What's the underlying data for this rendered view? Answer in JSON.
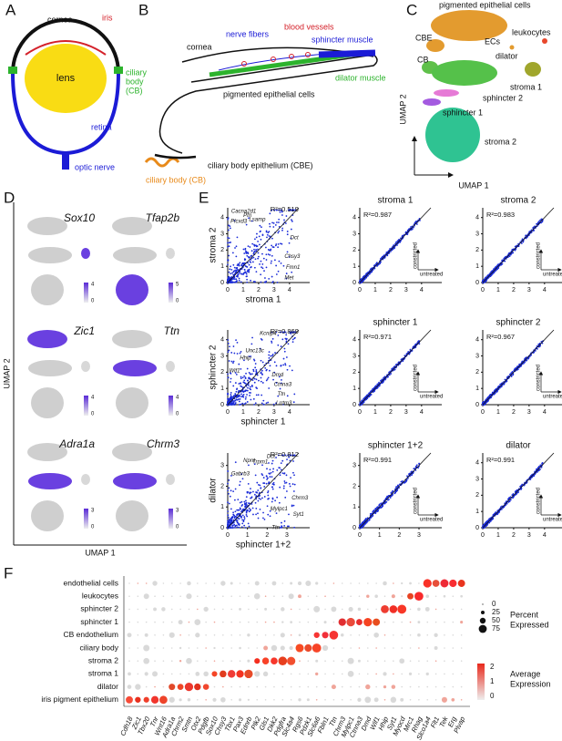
{
  "panels": {
    "A": {
      "label": "A",
      "cornea": "cornea",
      "iris": "iris",
      "ciliary_body": [
        "ciliary",
        "body",
        "(CB)"
      ],
      "lens": "lens",
      "retina": "retina",
      "optic_nerve": "optic nerve"
    },
    "B": {
      "label": "B",
      "cornea": "cornea",
      "nerve_fibers": "nerve fibers",
      "blood_vessels": "blood vessels",
      "sphincter": "sphincter muscle",
      "dilator": "dilator muscle",
      "pigmented": "pigmented epithelial cells",
      "cbe": "ciliary body epithelium (CBE)",
      "cb": "ciliary body (CB)"
    },
    "C": {
      "label": "C",
      "clusters": [
        "pigmented epithelial cells",
        "CBE",
        "leukocytes",
        "ECs",
        "CB",
        "dilator",
        "stroma 1",
        "sphincter 2",
        "sphincter 1",
        "stroma 2"
      ],
      "x_axis": "UMAP 1",
      "y_axis": "UMAP 2"
    },
    "D": {
      "label": "D",
      "genes": [
        {
          "name": "Sox10",
          "scale": [
            4,
            0
          ]
        },
        {
          "name": "Tfap2b",
          "scale": [
            5,
            0
          ]
        },
        {
          "name": "Zic1",
          "scale": [
            4,
            0
          ]
        },
        {
          "name": "Ttn",
          "scale": [
            4,
            0
          ]
        },
        {
          "name": "Adra1a",
          "scale": [
            3,
            0
          ]
        },
        {
          "name": "Chrm3",
          "scale": [
            3,
            0
          ]
        }
      ],
      "x_axis": "UMAP 1",
      "y_axis": "UMAP 2"
    },
    "E": {
      "label": "E",
      "plots": [
        {
          "x_label": "stroma 1",
          "y_label": "stroma 2",
          "r2": "R²=0.519",
          "xticks": [
            0,
            1,
            2,
            3,
            4
          ],
          "yticks": [
            0,
            1,
            2,
            3,
            4
          ],
          "genes": [
            "Cacna2d1",
            "Ptn",
            "Plcxd3",
            "Lsamp",
            "Dct",
            "Chsy3",
            "Fmn1",
            "Met"
          ]
        },
        {
          "title": "stroma 1",
          "r2": "R²=0.987",
          "xticks": [
            0,
            1,
            2,
            3,
            4
          ],
          "yticks": [
            0,
            1,
            2,
            3,
            4
          ],
          "arrow_y": "constricted",
          "arrow_x": "untreated"
        },
        {
          "title": "stroma 2",
          "r2": "R²=0.983",
          "xticks": [
            0,
            1,
            2,
            3,
            4
          ],
          "yticks": [
            0,
            1,
            2,
            3,
            4
          ],
          "arrow_y": "constricted",
          "arrow_x": "untreated"
        },
        {
          "x_label": "sphincter 1",
          "y_label": "sphincter 2",
          "r2": "R²=0.869",
          "xticks": [
            0,
            1,
            2,
            3,
            4
          ],
          "yticks": [
            0,
            1,
            2,
            3,
            4
          ],
          "genes": [
            "Kcnip4",
            "Unc13c",
            "Hhip",
            "Wif1",
            "Dmd",
            "Ctnna3",
            "Ttn",
            "Lrrtm3"
          ]
        },
        {
          "title": "sphincter 1",
          "r2": "R²=0.971",
          "xticks": [
            0,
            1,
            2,
            3,
            4
          ],
          "yticks": [
            0,
            1,
            2,
            3,
            4
          ],
          "arrow_y": "constricted",
          "arrow_x": "untreated"
        },
        {
          "title": "sphincter 2",
          "r2": "R²=0.967",
          "xticks": [
            0,
            1,
            2,
            3,
            4
          ],
          "yticks": [
            0,
            1,
            2,
            3,
            4
          ],
          "arrow_y": "constricted",
          "arrow_x": "untreated"
        },
        {
          "x_label": "sphincter 1+2",
          "y_label": "dilator",
          "r2": "R²=0.812",
          "xticks": [
            0,
            1,
            2,
            3
          ],
          "yticks": [
            0,
            1,
            2,
            3
          ],
          "genes": [
            "Dct",
            "Npnt",
            "Trpm1",
            "Gabrb3",
            "Chrm3",
            "Mylpc1",
            "Syt1",
            "Ttn"
          ]
        },
        {
          "title": "sphincter 1+2",
          "r2": "R²=0.991",
          "xticks": [
            0,
            1,
            2,
            3
          ],
          "yticks": [
            0,
            1,
            2,
            3
          ],
          "arrow_y": "constricted",
          "arrow_x": "untreated"
        },
        {
          "title": "dilator",
          "r2": "R²=0.991",
          "xticks": [
            0,
            1,
            2,
            3,
            4
          ],
          "yticks": [
            0,
            1,
            2,
            3,
            4
          ],
          "arrow_y": "constricted",
          "arrow_x": "untreated"
        }
      ]
    },
    "F": {
      "label": "F",
      "cell_types": [
        "endothelial cells",
        "leukocytes",
        "sphincter 2",
        "sphincter 1",
        "CB endothelium",
        "ciliary body",
        "stroma 2",
        "stroma 1",
        "dilator",
        "iris pigment epithelium"
      ],
      "genes": [
        "Cdh18",
        "Zic1",
        "Tbx20",
        "Tnr",
        "Wnt16",
        "Adra1a",
        "Chrm2",
        "Smtn",
        "Otx2",
        "Pdgfb",
        "Sox10",
        "Chsy3",
        "Tbx1",
        "Pax3",
        "Ednrb",
        "Plk2",
        "Gls1",
        "Dkk2",
        "Pdgfra",
        "Slc4a4",
        "Rgs6",
        "Pdzk1",
        "Slc6a6",
        "Fbln1",
        "Ttn",
        "Chrm3",
        "Mylpc1",
        "Ctnna3",
        "Dmd",
        "Wif1",
        "Hhip",
        "Syt1",
        "Myocd",
        "Mrc1",
        "Rhag",
        "Slco1a4",
        "Flt1",
        "Tek",
        "Erg",
        "Plvap"
      ],
      "size_legend": {
        "title": [
          "Percent",
          "Expressed"
        ],
        "ticks": [
          0,
          25,
          50,
          75
        ]
      },
      "color_legend": {
        "title": [
          "Average",
          "Expression"
        ],
        "ticks": [
          2,
          1,
          0
        ]
      }
    }
  }
}
